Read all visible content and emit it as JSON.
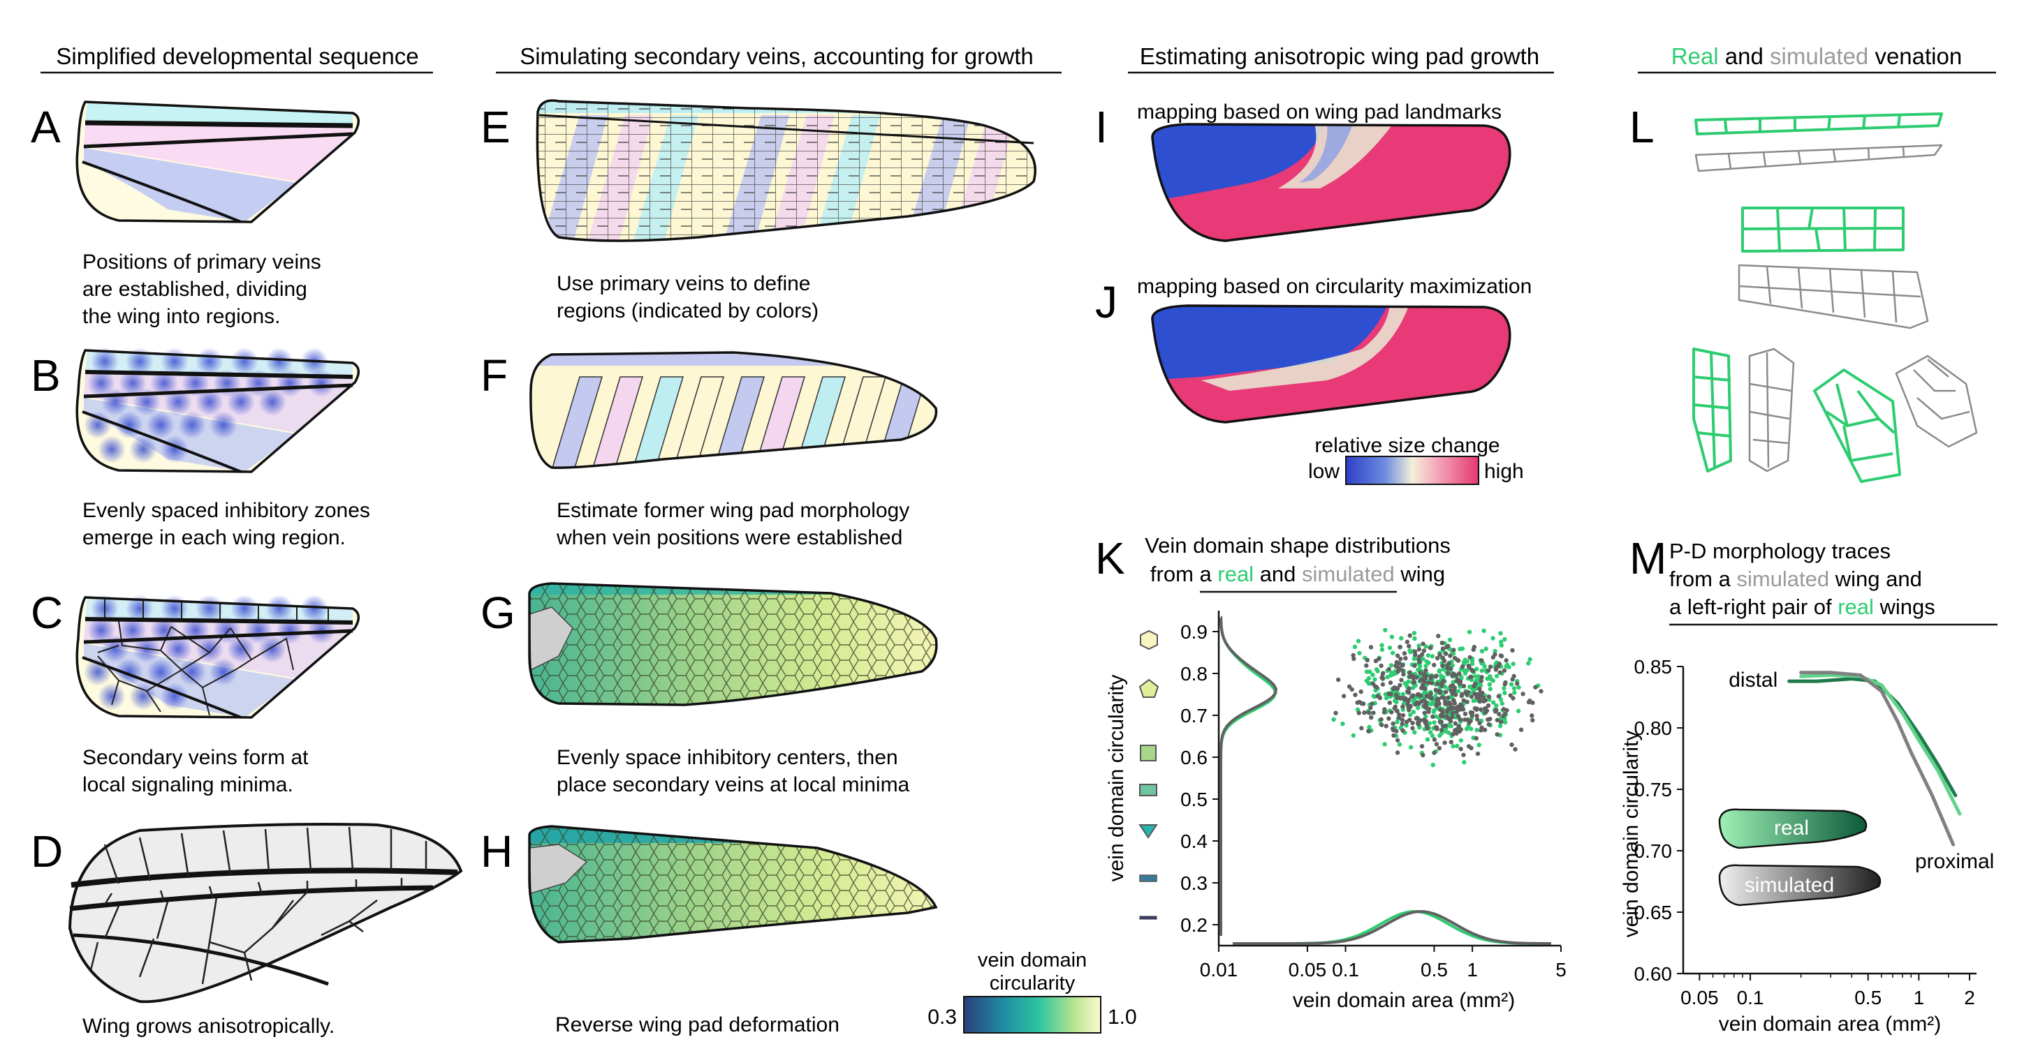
{
  "headers": {
    "col1": "Simplified developmental sequence",
    "col2": "Simulating secondary veins, accounting for growth",
    "col3": "Estimating anisotropic wing pad growth",
    "col4_real": "Real",
    "col4_and": " and ",
    "col4_sim": "simulated",
    "col4_rest": " venation"
  },
  "panels": {
    "A": {
      "letter": "A",
      "caption": [
        "Positions of primary veins",
        "are established, dividing",
        "the wing into regions."
      ]
    },
    "B": {
      "letter": "B",
      "caption": [
        "Evenly spaced inhibitory zones",
        "emerge in each wing region."
      ]
    },
    "C": {
      "letter": "C",
      "caption": [
        "Secondary veins form at",
        "local signaling minima."
      ]
    },
    "D": {
      "letter": "D",
      "caption": [
        "Wing grows anisotropically."
      ]
    },
    "E": {
      "letter": "E",
      "caption": [
        "Use primary veins to define",
        "regions (indicated by colors)"
      ]
    },
    "F": {
      "letter": "F",
      "caption": [
        "Estimate former wing pad morphology",
        "when vein positions were established"
      ]
    },
    "G": {
      "letter": "G",
      "caption": [
        "Evenly space inhibitory centers, then",
        "place secondary veins at local minima"
      ]
    },
    "H": {
      "letter": "H",
      "caption": [
        "Reverse wing pad deformation"
      ]
    },
    "I": {
      "letter": "I",
      "caption": [
        "mapping based on wing pad landmarks"
      ]
    },
    "J": {
      "letter": "J",
      "caption": [
        "mapping based on circularity maximization"
      ]
    },
    "K": {
      "letter": "K",
      "title1": "Vein domain shape distributions",
      "title2a": "from a ",
      "title2b": "real",
      "title2c": " and ",
      "title2d": "simulated",
      "title2e": " wing"
    },
    "L": {
      "letter": "L"
    },
    "M": {
      "letter": "M",
      "title1": "P-D morphology traces",
      "title2a": "from a ",
      "title2b": "simulated",
      "title2c": " wing and",
      "title3a": "a left-right pair of ",
      "title3b": "real",
      "title3c": " wings"
    }
  },
  "colorbars": {
    "circularity": {
      "title1": "vein domain",
      "title2": "circularity",
      "min": "0.3",
      "max": "1.0"
    },
    "size": {
      "title": "relative size change",
      "low": "low",
      "high": "high"
    }
  },
  "colors": {
    "real": "#2ecc71",
    "simulated": "#9a9a9a",
    "dark": "#606060"
  },
  "chart_data": [
    {
      "type": "scatter",
      "panel": "K",
      "title": "Vein domain shape distributions from a real and simulated wing",
      "xlabel": "vein domain area (mm²)",
      "ylabel": "vein domain circularity",
      "xscale": "log",
      "xlim": [
        0.01,
        5
      ],
      "ylim": [
        0.15,
        0.95
      ],
      "xticks": [
        "0.01",
        "0.05",
        "0.1",
        "0.5",
        "1",
        "5"
      ],
      "xtick_values": [
        0.01,
        0.05,
        0.1,
        0.5,
        1,
        5
      ],
      "yticks": [
        "0.2",
        "0.3",
        "0.4",
        "0.5",
        "0.6",
        "0.7",
        "0.8",
        "0.9"
      ],
      "ytick_values": [
        0.2,
        0.3,
        0.4,
        0.5,
        0.6,
        0.7,
        0.8,
        0.9
      ],
      "series": [
        {
          "name": "real",
          "color": "#2ecc71",
          "center": [
            0.6,
            0.76
          ]
        },
        {
          "name": "simulated",
          "color": "#606060",
          "center": [
            0.55,
            0.75
          ]
        }
      ]
    },
    {
      "type": "line",
      "panel": "M",
      "title": "P-D morphology traces from a simulated wing and a left-right pair of real wings",
      "xlabel": "vein domain area (mm²)",
      "ylabel": "vein domain circularity",
      "xscale": "log",
      "xlim": [
        0.04,
        2.2
      ],
      "ylim": [
        0.6,
        0.85
      ],
      "xticks": [
        "0.05",
        "0.1",
        "0.5",
        "1",
        "2"
      ],
      "xtick_values": [
        0.05,
        0.1,
        0.5,
        1,
        2
      ],
      "yticks": [
        "0.60",
        "0.65",
        "0.70",
        "0.75",
        "0.80",
        "0.85"
      ],
      "ytick_values": [
        0.6,
        0.65,
        0.7,
        0.75,
        0.8,
        0.85
      ],
      "annotations": [
        "distal",
        "proximal"
      ],
      "legend": [
        "real",
        "simulated"
      ],
      "series": [
        {
          "name": "real",
          "color": "#1e7a4a",
          "x": [
            0.17,
            0.25,
            0.4,
            0.55,
            0.75,
            1.0,
            1.3,
            1.65
          ],
          "y": [
            0.838,
            0.838,
            0.84,
            0.838,
            0.82,
            0.795,
            0.77,
            0.745
          ]
        },
        {
          "name": "real",
          "color": "#5fd38a",
          "x": [
            0.2,
            0.3,
            0.45,
            0.6,
            0.8,
            1.0,
            1.3,
            1.75
          ],
          "y": [
            0.842,
            0.843,
            0.842,
            0.835,
            0.812,
            0.79,
            0.765,
            0.73
          ]
        },
        {
          "name": "simulated",
          "color": "#808080",
          "x": [
            0.2,
            0.3,
            0.45,
            0.6,
            0.75,
            0.9,
            1.2,
            1.6
          ],
          "y": [
            0.845,
            0.845,
            0.843,
            0.83,
            0.805,
            0.78,
            0.745,
            0.705
          ]
        }
      ]
    }
  ]
}
